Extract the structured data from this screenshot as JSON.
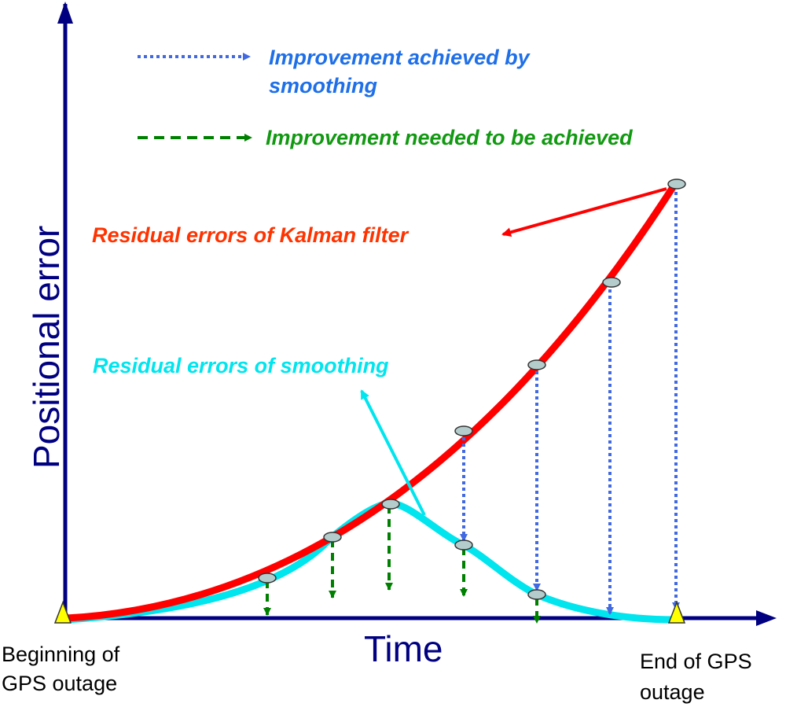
{
  "axes": {
    "y_title": "Positional error",
    "x_title": "Time"
  },
  "legend": {
    "smoothing_improvement": "Improvement achieved by smoothing",
    "smoothing_improvement_line1": "Improvement achieved by",
    "smoothing_improvement_line2": "smoothing",
    "needed_improvement": "Improvement needed to be achieved"
  },
  "annotations": {
    "kalman": "Residual errors of Kalman filter",
    "smoothing": "Residual errors of smoothing"
  },
  "markers": {
    "start_line1": "Beginning of",
    "start_line2": "GPS outage",
    "end_line1": "End of GPS",
    "end_line2": "outage"
  },
  "colors": {
    "axis": "#000080",
    "kalman_curve": "#ff0000",
    "smoothing_curve": "#00e5ee",
    "achieved_arrow": "#4169e1",
    "needed_arrow": "#008000",
    "kalman_label": "#ff3300",
    "smoothing_label": "#00e5ee",
    "achieved_label": "#1e6fe8",
    "needed_label": "#119911",
    "node_fill": "#b4cccc",
    "marker_fill": "#ffff00"
  }
}
